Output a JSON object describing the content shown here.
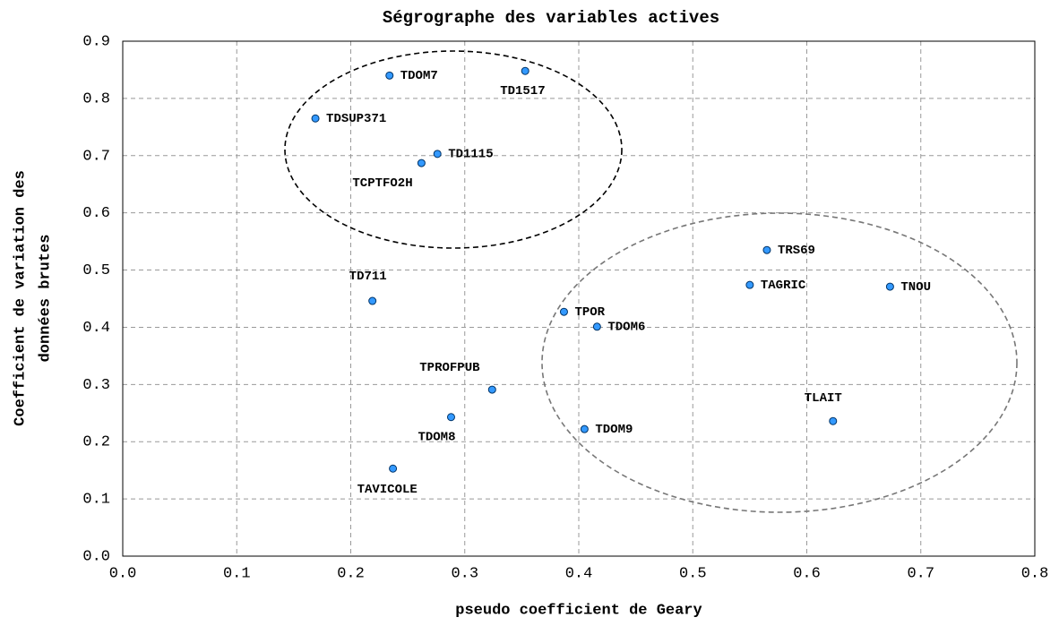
{
  "chart_data": {
    "type": "scatter",
    "title": "Ségrographe des variables actives",
    "x_label": "pseudo coefficient de Geary",
    "y_label": [
      "Coefficient de variation des",
      "données brutes"
    ],
    "x": [
      0.234,
      0.353,
      0.169,
      0.276,
      0.262,
      0.219,
      0.565,
      0.55,
      0.673,
      0.387,
      0.416,
      0.324,
      0.288,
      0.405,
      0.623,
      0.237
    ],
    "values": [
      0.84,
      0.848,
      0.765,
      0.703,
      0.687,
      0.446,
      0.535,
      0.474,
      0.471,
      0.427,
      0.401,
      0.291,
      0.243,
      0.222,
      0.236,
      0.153
    ],
    "labels": [
      "TDOM7",
      "TD1517",
      "TDSUP371",
      "TD1115",
      "TCPTFO2H",
      "TD711",
      "TRS69",
      "TAGRIC",
      "TNOU",
      "TPOR",
      "TDOM6",
      "TPROFPUB",
      "TDOM8",
      "TDOM9",
      "TLAIT",
      "TAVICOLE"
    ],
    "color": "#3399ff",
    "xlim": [
      0,
      0.8
    ],
    "ylim": [
      0,
      0.9
    ],
    "xticks": [
      {
        "value": 0,
        "label": "0.0"
      },
      0.1,
      0.2,
      0.3,
      0.4,
      0.5,
      0.6,
      0.7,
      0.8
    ],
    "yticks": [
      {
        "value": 0,
        "label": "0.0"
      },
      0.1,
      0.2,
      0.3,
      0.4,
      0.5,
      0.6,
      0.7,
      0.8,
      0.9
    ],
    "grid": true
  }
}
